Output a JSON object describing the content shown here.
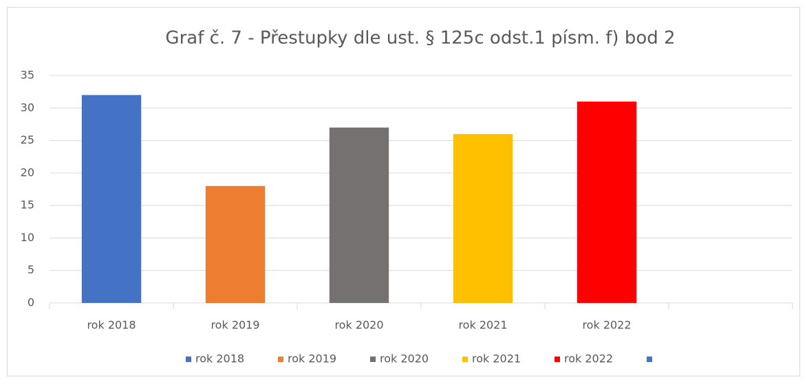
{
  "chart_data": {
    "type": "bar",
    "title": "Graf č. 7 - Přestupky dle ust. § 125c odst.1 písm. f) bod 2",
    "categories": [
      "rok 2018",
      "rok 2019",
      "rok 2020",
      "rok 2021",
      "rok 2022",
      null
    ],
    "values": [
      32,
      18,
      27,
      26,
      31,
      null
    ],
    "colors": [
      "#4472c4",
      "#ed7d31",
      "#767171",
      "#ffc000",
      "#ff0000",
      "#4472c4"
    ],
    "ylim": [
      0,
      35
    ],
    "yticks": [
      0,
      5,
      10,
      15,
      20,
      25,
      30,
      35
    ],
    "grid": true,
    "legend": "bottom"
  }
}
